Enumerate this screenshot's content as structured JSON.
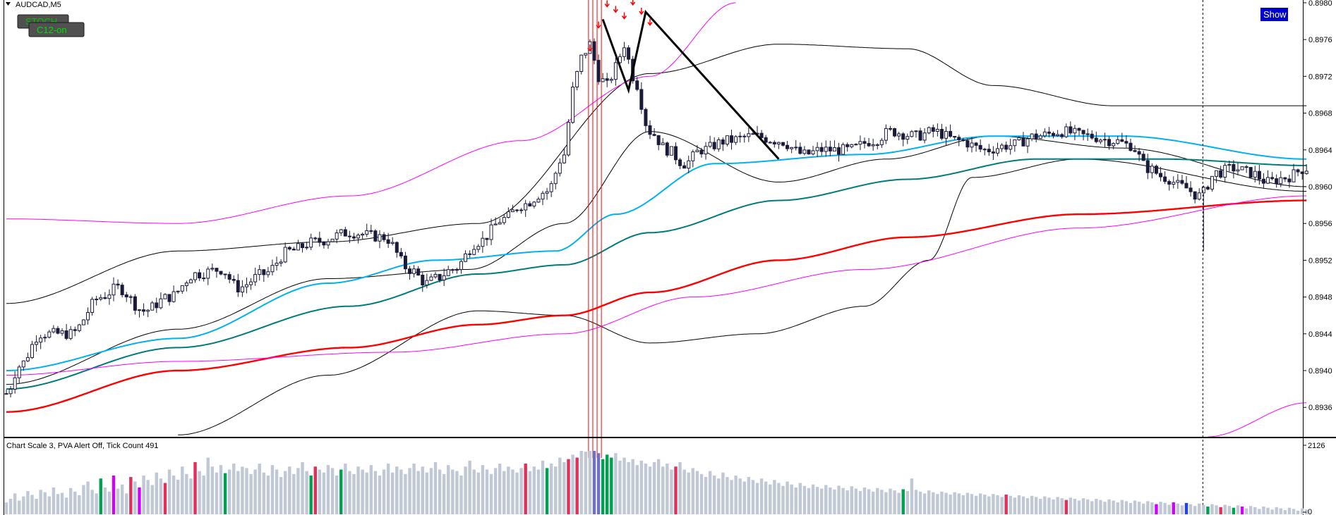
{
  "window": {
    "symbol_title": "AUDCAD,M5",
    "show_button": "Show",
    "indicator_buttons": [
      {
        "label": "STOCH",
        "state": "hidden-behind"
      },
      {
        "label": "C12-on",
        "state": "front"
      }
    ]
  },
  "sub_window": {
    "status_text": "Chart Scale  3,   PVA Alert Off,   Tick Count  491",
    "axis_max_label": "2126",
    "axis_min_label": "0"
  },
  "colors": {
    "background": "#ffffff",
    "candle_body": "#ffffff",
    "candle_outline": "#1a1a3a",
    "bollinger": "#000000",
    "ma_fast": "#00b0f0",
    "ma_mid": "#007a7a",
    "ma_slow": "#ff0000",
    "envelope": "#ff00ff",
    "vertical_markers": "#ff0000",
    "signal_arrows": "#ff0000",
    "volume_normal": "#c0c8d6",
    "volume_climax": "#00a050",
    "volume_churn": "#e0305a",
    "volume_magenta": "#d000ff",
    "volume_blue": "#2040ff",
    "show_button_bg": "#0000cc"
  },
  "chart_data": {
    "type": "candlestick",
    "instrument": "AUDCAD",
    "timeframe": "M5",
    "y_ticks": [
      0.898,
      0.8976,
      0.8972,
      0.8968,
      0.8964,
      0.896,
      0.8956,
      0.8952,
      0.8948,
      0.8944,
      0.894,
      0.8936
    ],
    "y_tick_labels": [
      "0.8980",
      "0.8976",
      "0.8972",
      "0.8968",
      "0.8964",
      "0.8960",
      "0.8956",
      "0.8952",
      "0.8948",
      "0.8944",
      "0.8940",
      "0.8936"
    ],
    "ylim": [
      0.89328,
      0.89803
    ],
    "close_path": [
      [
        0,
        0.89375
      ],
      [
        3,
        0.89405
      ],
      [
        8,
        0.8944
      ],
      [
        15,
        0.8944
      ],
      [
        22,
        0.8948
      ],
      [
        26,
        0.8949
      ],
      [
        32,
        0.89465
      ],
      [
        38,
        0.8948
      ],
      [
        44,
        0.89505
      ],
      [
        50,
        0.8951
      ],
      [
        54,
        0.8949
      ],
      [
        60,
        0.89505
      ],
      [
        66,
        0.8953
      ],
      [
        72,
        0.8954
      ],
      [
        80,
        0.8955
      ],
      [
        88,
        0.89545
      ],
      [
        94,
        0.8951
      ],
      [
        98,
        0.89495
      ],
      [
        100,
        0.895
      ],
      [
        104,
        0.8951
      ],
      [
        110,
        0.8954
      ],
      [
        116,
        0.89565
      ],
      [
        120,
        0.8958
      ],
      [
        126,
        0.89595
      ],
      [
        130,
        0.89635
      ],
      [
        132,
        0.89705
      ],
      [
        134,
        0.8974
      ],
      [
        136,
        0.89755
      ],
      [
        138,
        0.8972
      ],
      [
        140,
        0.8971
      ],
      [
        142,
        0.8973
      ],
      [
        144,
        0.89755
      ],
      [
        146,
        0.8972
      ],
      [
        150,
        0.8966
      ],
      [
        154,
        0.8964
      ],
      [
        158,
        0.89625
      ],
      [
        162,
        0.8964
      ],
      [
        168,
        0.8965
      ],
      [
        174,
        0.89655
      ],
      [
        180,
        0.8965
      ],
      [
        186,
        0.89635
      ],
      [
        190,
        0.8964
      ],
      [
        196,
        0.8964
      ],
      [
        202,
        0.8965
      ],
      [
        206,
        0.8966
      ],
      [
        212,
        0.89655
      ],
      [
        216,
        0.8966
      ],
      [
        222,
        0.8965
      ],
      [
        228,
        0.8964
      ],
      [
        234,
        0.89645
      ],
      [
        240,
        0.89655
      ],
      [
        246,
        0.8966
      ],
      [
        252,
        0.89655
      ],
      [
        258,
        0.8965
      ],
      [
        262,
        0.89645
      ],
      [
        266,
        0.8962
      ],
      [
        270,
        0.8961
      ],
      [
        274,
        0.896
      ],
      [
        278,
        0.8959
      ],
      [
        282,
        0.89615
      ],
      [
        286,
        0.8962
      ],
      [
        290,
        0.89615
      ],
      [
        294,
        0.89605
      ],
      [
        298,
        0.8961
      ],
      [
        303,
        0.8962
      ]
    ],
    "spike_bar": {
      "index": 279,
      "low": 0.8953
    },
    "moving_averages": [
      {
        "id": "bb-upper",
        "color": "#000000",
        "points": [
          [
            0,
            0.89473
          ],
          [
            40,
            0.8953
          ],
          [
            75,
            0.8954
          ],
          [
            110,
            0.8956
          ],
          [
            150,
            0.89723
          ],
          [
            180,
            0.89755
          ],
          [
            210,
            0.8975
          ],
          [
            230,
            0.8971
          ],
          [
            258,
            0.89688
          ],
          [
            303,
            0.89688
          ]
        ]
      },
      {
        "id": "bb-mid",
        "color": "#000000",
        "points": [
          [
            0,
            0.89385
          ],
          [
            40,
            0.89445
          ],
          [
            75,
            0.895
          ],
          [
            108,
            0.8951
          ],
          [
            130,
            0.8956
          ],
          [
            150,
            0.8966
          ],
          [
            180,
            0.89605
          ],
          [
            205,
            0.8963
          ],
          [
            230,
            0.89655
          ],
          [
            260,
            0.89642
          ],
          [
            303,
            0.896
          ]
        ]
      },
      {
        "id": "bb-lower",
        "color": "#000000",
        "points": [
          [
            40,
            0.8933
          ],
          [
            75,
            0.89395
          ],
          [
            110,
            0.89465
          ],
          [
            130,
            0.8946
          ],
          [
            150,
            0.8943
          ],
          [
            175,
            0.8944
          ],
          [
            200,
            0.8947
          ],
          [
            215,
            0.8952
          ],
          [
            225,
            0.8961
          ],
          [
            250,
            0.8963
          ],
          [
            303,
            0.89595
          ]
        ]
      },
      {
        "id": "ma-fast",
        "color": "#00b0f0",
        "points": [
          [
            0,
            0.894
          ],
          [
            40,
            0.89435
          ],
          [
            75,
            0.89495
          ],
          [
            100,
            0.8952
          ],
          [
            128,
            0.8953
          ],
          [
            142,
            0.8957
          ],
          [
            165,
            0.89625
          ],
          [
            200,
            0.89635
          ],
          [
            230,
            0.89655
          ],
          [
            260,
            0.89655
          ],
          [
            303,
            0.8963
          ]
        ]
      },
      {
        "id": "ma-mid",
        "color": "#007a7a",
        "points": [
          [
            0,
            0.8938
          ],
          [
            40,
            0.89425
          ],
          [
            80,
            0.8947
          ],
          [
            110,
            0.89505
          ],
          [
            130,
            0.89515
          ],
          [
            150,
            0.8955
          ],
          [
            180,
            0.89585
          ],
          [
            210,
            0.89608
          ],
          [
            240,
            0.8963
          ],
          [
            270,
            0.8963
          ],
          [
            303,
            0.89623
          ]
        ]
      },
      {
        "id": "ma-slow",
        "color": "#ff0000",
        "points": [
          [
            0,
            0.89355
          ],
          [
            40,
            0.894
          ],
          [
            80,
            0.89425
          ],
          [
            110,
            0.8945
          ],
          [
            130,
            0.8946
          ],
          [
            150,
            0.89485
          ],
          [
            180,
            0.8952
          ],
          [
            210,
            0.89545
          ],
          [
            250,
            0.8957
          ],
          [
            303,
            0.89585
          ]
        ]
      },
      {
        "id": "envelope-upper",
        "color": "#ff00ff",
        "points": [
          [
            0,
            0.89565
          ],
          [
            40,
            0.8956
          ],
          [
            80,
            0.8959
          ],
          [
            120,
            0.8965
          ],
          [
            150,
            0.8972
          ],
          [
            170,
            0.898
          ]
        ]
      },
      {
        "id": "envelope-lower",
        "color": "#ff00ff",
        "points": [
          [
            0,
            0.89395
          ],
          [
            40,
            0.8941
          ],
          [
            90,
            0.8942
          ],
          [
            130,
            0.8944
          ],
          [
            160,
            0.8948
          ],
          [
            200,
            0.8951
          ],
          [
            250,
            0.89555
          ],
          [
            303,
            0.8959
          ]
        ]
      },
      {
        "id": "envelope-lower-2",
        "color": "#ff00ff",
        "points": [
          [
            280,
            0.89328
          ],
          [
            303,
            0.89365
          ]
        ]
      }
    ],
    "zigzag": [
      [
        139,
        0.89782
      ],
      [
        145,
        0.89705
      ],
      [
        149,
        0.8979
      ],
      [
        180,
        0.8963
      ]
    ],
    "vertical_markers_bar_index": [
      136,
      137,
      138,
      139
    ],
    "cursor_bar_index": 279,
    "signal_arrows": [
      {
        "index": 136,
        "price": 0.8975
      },
      {
        "index": 138,
        "price": 0.89775
      },
      {
        "index": 140,
        "price": 0.89798
      },
      {
        "index": 142,
        "price": 0.89792
      },
      {
        "index": 144,
        "price": 0.89785
      },
      {
        "index": 146,
        "price": 0.898
      },
      {
        "index": 148,
        "price": 0.8979
      },
      {
        "index": 150,
        "price": 0.89778
      }
    ],
    "volume": {
      "max": 2126,
      "base": [
        400,
        520,
        700,
        460,
        600,
        780,
        650,
        520,
        820,
        740,
        600,
        900,
        680,
        720,
        560,
        880,
        760,
        640,
        980,
        1100,
        820,
        700,
        1200,
        900,
        760,
        1300,
        860,
        1000,
        700,
        1250,
        1100,
        900,
        1300,
        1150,
        980,
        1400,
        1200,
        1050,
        1500,
        1300,
        1160,
        1600,
        1350,
        1200,
        1750,
        1450,
        1300,
        1900,
        1600,
        1400,
        1650,
        1380,
        1500,
        1700,
        1450,
        1600,
        1550,
        1350,
        1500,
        1700,
        1400,
        1300,
        1650,
        1500,
        1250,
        1450,
        1600,
        1350,
        1550,
        1750,
        1450,
        1300,
        1600,
        1500,
        1400,
        1650,
        1550,
        1300,
        1500,
        1700,
        1450,
        1350,
        1600,
        1500,
        1400,
        1650,
        1450,
        1300,
        1500,
        1700,
        1400,
        1600,
        1500,
        1350,
        1550,
        1700,
        1450,
        1600,
        1400,
        1550,
        1750,
        1500,
        1350,
        1650,
        1500,
        1450,
        1300,
        1600,
        1800,
        1500,
        1400,
        1650,
        1500,
        1350,
        1550,
        1700,
        1450,
        1600,
        1500,
        1400,
        1550,
        1700,
        1450,
        1600,
        1500,
        1800,
        1550,
        1700,
        1600,
        1900,
        1750,
        1850,
        2000,
        1900,
        2126,
        2100,
        2126,
        2126,
        2050,
        1850,
        2000,
        1900,
        2050,
        1800,
        1900,
        1750,
        1850,
        1650,
        1800,
        1700,
        1600,
        1750,
        1850,
        1600,
        1700,
        1500,
        1600,
        1750,
        1500,
        1400,
        1550,
        1450,
        1350,
        1250,
        1450,
        1300,
        1200,
        1400,
        1250,
        1150,
        1300,
        1200,
        1100,
        1250,
        1150,
        1050,
        1200,
        1100,
        1000,
        1150,
        1050,
        950,
        1100,
        1000,
        900,
        1050,
        950,
        880,
        1000,
        920,
        860,
        980,
        900,
        830,
        960,
        880,
        800,
        940,
        860,
        780,
        900,
        840,
        760,
        880,
        820,
        740,
        860,
        800,
        720,
        840,
        780,
        1200,
        820,
        760,
        700,
        800,
        740,
        680,
        760,
        720,
        660,
        740,
        700,
        640,
        720,
        680,
        620,
        700,
        660,
        600,
        680,
        640,
        580,
        660,
        620,
        560,
        640,
        600,
        540,
        620,
        580,
        520,
        600,
        560,
        500,
        580,
        540,
        480,
        560,
        520,
        460,
        540,
        500,
        440,
        520,
        480,
        420,
        500,
        460,
        400,
        480,
        440,
        380,
        460,
        420,
        360,
        440,
        400,
        340,
        420,
        380,
        320,
        400,
        360,
        300,
        380,
        340,
        280,
        360,
        320,
        260,
        340,
        300,
        240,
        320,
        280,
        220,
        300,
        260,
        200,
        280,
        240,
        180,
        260,
        220,
        160,
        240,
        200,
        140,
        220,
        180,
        120,
        200,
        160
      ],
      "overrides": {
        "22": "green",
        "25": "magenta",
        "29": "red",
        "31": "magenta",
        "37": "red",
        "44": "red",
        "51": "green",
        "71": "green",
        "72": "red",
        "78": "green",
        "121": "red",
        "126": "green",
        "131": "red",
        "133": "red",
        "137": "violet",
        "138": "violet",
        "139": "green",
        "140": "green",
        "141": "green",
        "156": "red",
        "209": "green",
        "233": "red",
        "247": "red",
        "268": "magenta",
        "272": "magenta",
        "275": "blue",
        "280": "green",
        "283": "red",
        "286": "green",
        "288": "magenta"
      }
    }
  }
}
